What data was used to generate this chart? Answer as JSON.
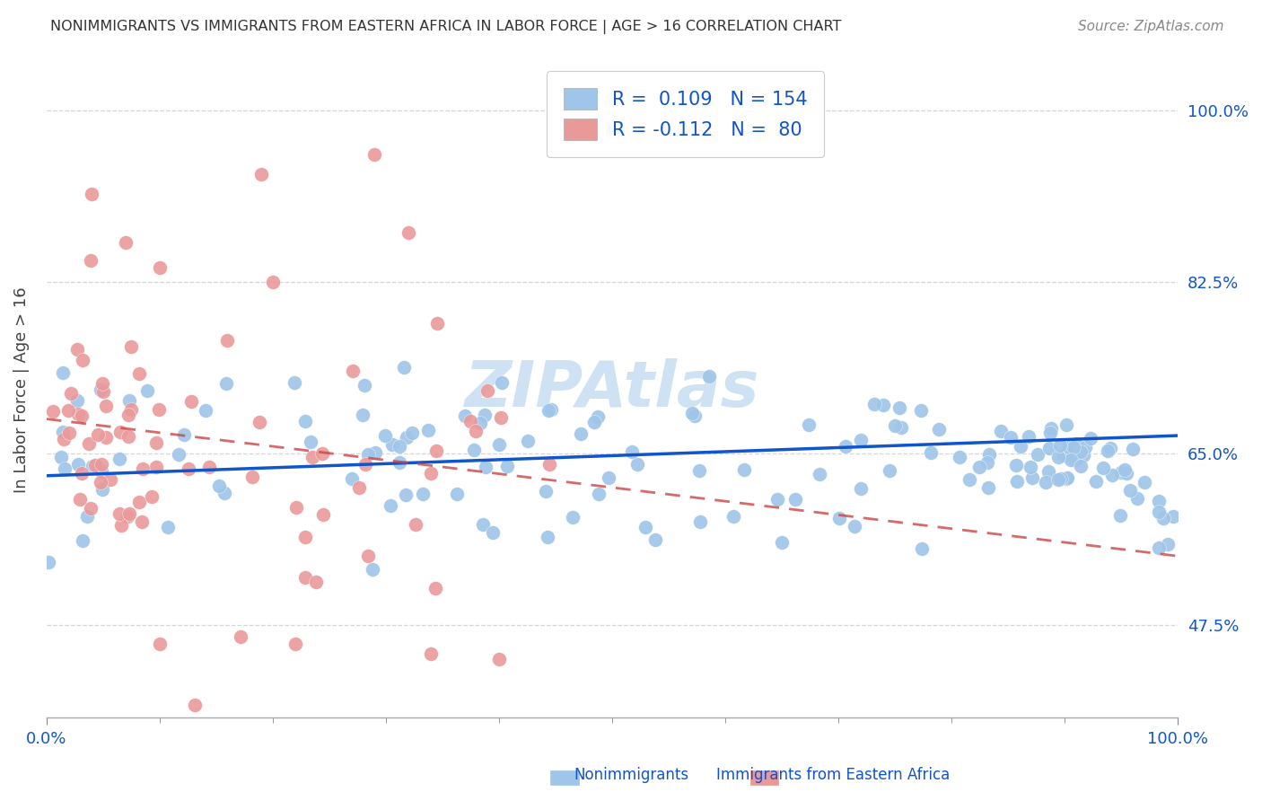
{
  "title": "NONIMMIGRANTS VS IMMIGRANTS FROM EASTERN AFRICA IN LABOR FORCE | AGE > 16 CORRELATION CHART",
  "source": "Source: ZipAtlas.com",
  "ylabel": "In Labor Force | Age > 16",
  "ytick_labels": [
    "47.5%",
    "65.0%",
    "82.5%",
    "100.0%"
  ],
  "ytick_values": [
    0.475,
    0.65,
    0.825,
    1.0
  ],
  "xlim": [
    0.0,
    1.0
  ],
  "ylim": [
    0.38,
    1.05
  ],
  "blue_color": "#9fc5e8",
  "pink_color": "#ea9999",
  "blue_line_color": "#1155cc",
  "pink_line_color": "#cc4444",
  "R_blue": 0.109,
  "N_blue": 154,
  "R_pink": -0.112,
  "N_pink": 80,
  "background_color": "#ffffff",
  "grid_color": "#cccccc",
  "title_color": "#333333",
  "axis_label_color": "#1155cc",
  "legend_text_color": "#1155cc",
  "watermark_color": "#cfe2f3",
  "blue_trend_start_y": 0.627,
  "blue_trend_end_y": 0.668,
  "pink_trend_start_y": 0.685,
  "pink_trend_end_y": 0.545
}
